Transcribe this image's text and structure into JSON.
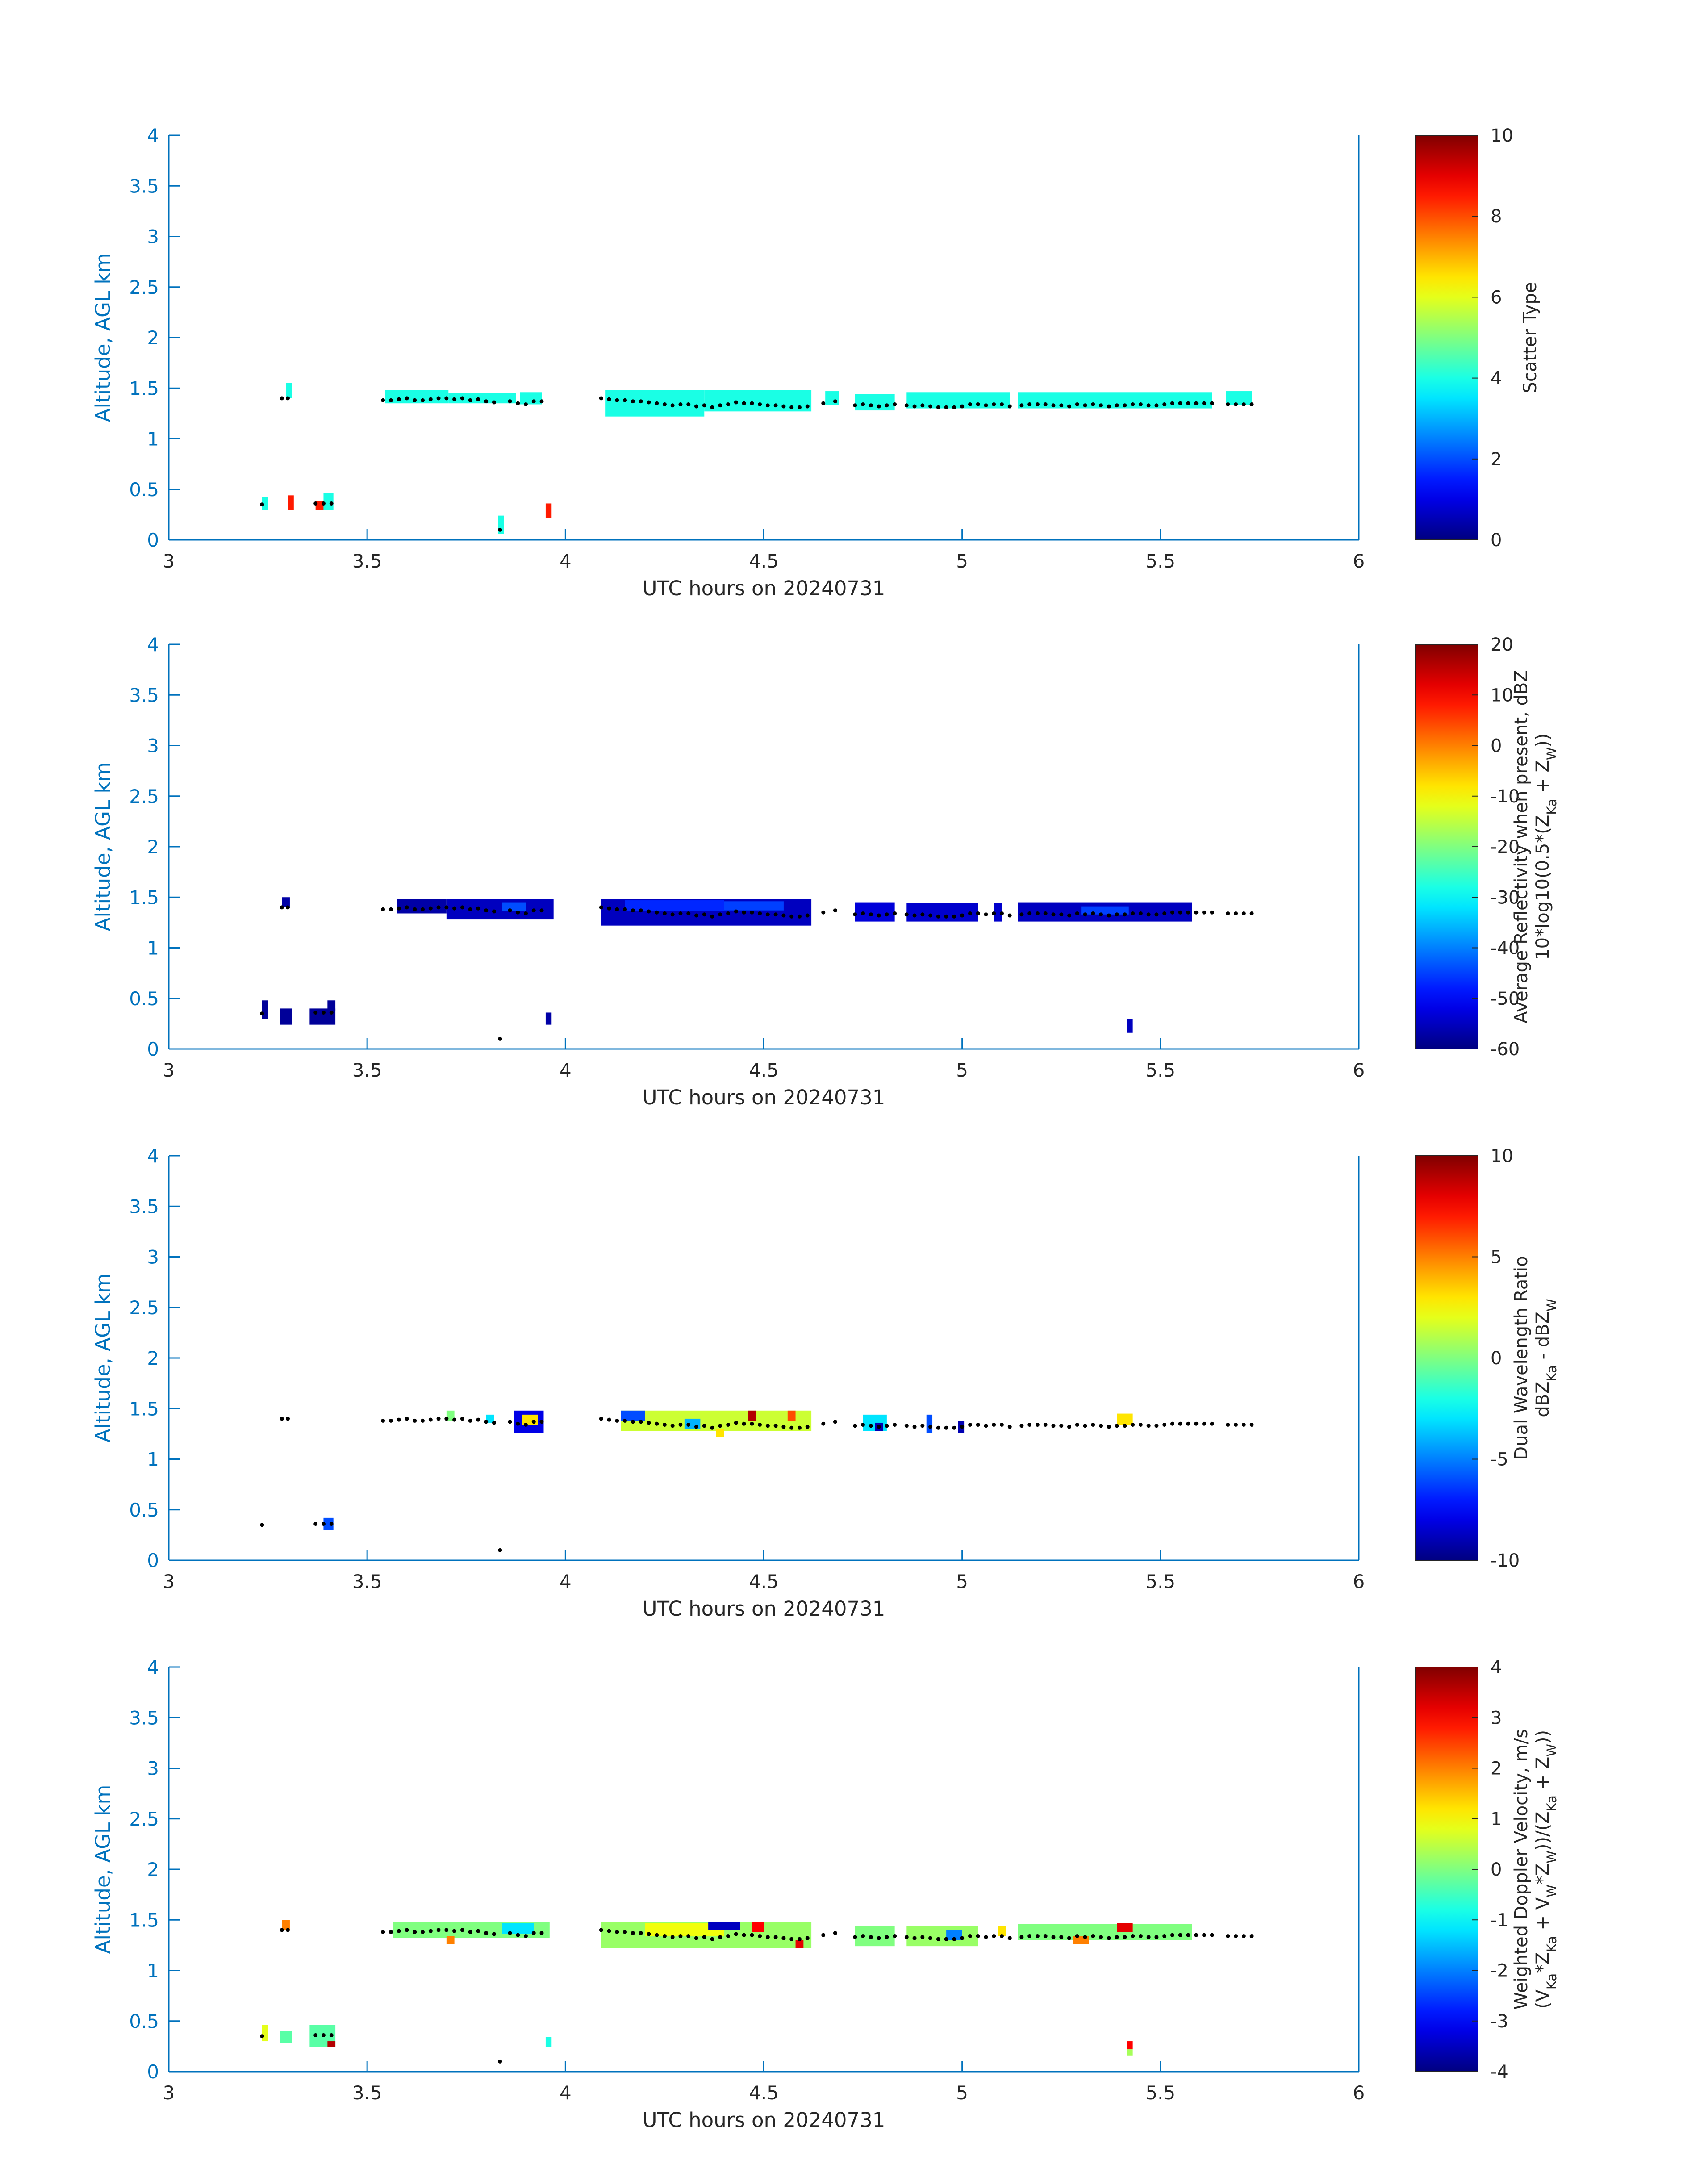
{
  "figure": {
    "xlabel": "UTC hours on 20240731",
    "ylabel": "Altitude, AGL km",
    "axis_color": "#0072BD",
    "text_color": "#262626",
    "marker_color": "#000000"
  },
  "chart_data": [
    {
      "type": "heatmap",
      "xlabel": "UTC hours on 20240731",
      "ylabel": "Altitude, AGL km",
      "xlim": [
        3,
        6
      ],
      "ylim": [
        0,
        4
      ],
      "xticks": [
        3,
        3.5,
        4,
        4.5,
        5,
        5.5,
        6
      ],
      "yticks": [
        0,
        0.5,
        1,
        1.5,
        2,
        2.5,
        3,
        3.5,
        4
      ],
      "colorbar": {
        "label_lines": [
          "Scatter Type"
        ],
        "clim": [
          0,
          10
        ],
        "ticks": [
          0,
          2,
          4,
          6,
          8,
          10
        ],
        "colormap": "jet"
      },
      "grid": false,
      "segments": [
        {
          "x0": 3.295,
          "x1": 3.31,
          "y0": 1.4,
          "y1": 1.55,
          "v": 4
        },
        {
          "x0": 3.545,
          "x1": 3.705,
          "y0": 1.35,
          "y1": 1.48,
          "v": 4
        },
        {
          "x0": 3.705,
          "x1": 3.875,
          "y0": 1.35,
          "y1": 1.45,
          "v": 4
        },
        {
          "x0": 3.885,
          "x1": 3.94,
          "y0": 1.34,
          "y1": 1.46,
          "v": 4
        },
        {
          "x0": 4.1,
          "x1": 4.35,
          "y0": 1.22,
          "y1": 1.48,
          "v": 4
        },
        {
          "x0": 4.35,
          "x1": 4.62,
          "y0": 1.27,
          "y1": 1.48,
          "v": 4
        },
        {
          "x0": 4.655,
          "x1": 4.69,
          "y0": 1.33,
          "y1": 1.47,
          "v": 4
        },
        {
          "x0": 4.73,
          "x1": 4.83,
          "y0": 1.28,
          "y1": 1.44,
          "v": 4
        },
        {
          "x0": 4.86,
          "x1": 5.12,
          "y0": 1.3,
          "y1": 1.46,
          "v": 4
        },
        {
          "x0": 5.14,
          "x1": 5.63,
          "y0": 1.3,
          "y1": 1.46,
          "v": 4
        },
        {
          "x0": 5.665,
          "x1": 5.73,
          "y0": 1.33,
          "y1": 1.47,
          "v": 4
        },
        {
          "x0": 3.235,
          "x1": 3.25,
          "y0": 0.3,
          "y1": 0.42,
          "v": 4
        },
        {
          "x0": 3.3,
          "x1": 3.315,
          "y0": 0.3,
          "y1": 0.44,
          "v": 8.5
        },
        {
          "x0": 3.37,
          "x1": 3.39,
          "y0": 0.3,
          "y1": 0.38,
          "v": 8.5
        },
        {
          "x0": 3.39,
          "x1": 3.415,
          "y0": 0.3,
          "y1": 0.46,
          "v": 4
        },
        {
          "x0": 3.83,
          "x1": 3.845,
          "y0": 0.06,
          "y1": 0.24,
          "v": 4
        },
        {
          "x0": 3.95,
          "x1": 3.965,
          "y0": 0.22,
          "y1": 0.36,
          "v": 8.5
        }
      ]
    },
    {
      "type": "heatmap",
      "xlabel": "UTC hours on 20240731",
      "ylabel": "Altitude, AGL km",
      "xlim": [
        3,
        6
      ],
      "ylim": [
        0,
        4
      ],
      "xticks": [
        3,
        3.5,
        4,
        4.5,
        5,
        5.5,
        6
      ],
      "yticks": [
        0,
        0.5,
        1,
        1.5,
        2,
        2.5,
        3,
        3.5,
        4
      ],
      "colorbar": {
        "label_lines": [
          "Average Reflectivity when present, dBZ",
          "10*log10(0.5*(Z_Ka + Z_W))"
        ],
        "clim": [
          -60,
          20
        ],
        "ticks": [
          -60,
          -50,
          -40,
          -30,
          -20,
          -10,
          0,
          10,
          20
        ],
        "colormap": "jet"
      },
      "grid": false,
      "segments": [
        {
          "x0": 3.575,
          "x1": 3.7,
          "y0": 1.34,
          "y1": 1.48,
          "v": -57
        },
        {
          "x0": 3.7,
          "x1": 3.97,
          "y0": 1.28,
          "y1": 1.48,
          "v": -55
        },
        {
          "x0": 3.84,
          "x1": 3.9,
          "y0": 1.36,
          "y1": 1.45,
          "v": -44
        },
        {
          "x0": 4.09,
          "x1": 4.62,
          "y0": 1.22,
          "y1": 1.48,
          "v": -55
        },
        {
          "x0": 4.15,
          "x1": 4.4,
          "y0": 1.36,
          "y1": 1.47,
          "v": -47
        },
        {
          "x0": 4.4,
          "x1": 4.55,
          "y0": 1.37,
          "y1": 1.46,
          "v": -45
        },
        {
          "x0": 4.73,
          "x1": 4.83,
          "y0": 1.26,
          "y1": 1.45,
          "v": -53
        },
        {
          "x0": 4.86,
          "x1": 5.04,
          "y0": 1.26,
          "y1": 1.44,
          "v": -54
        },
        {
          "x0": 5.08,
          "x1": 5.1,
          "y0": 1.26,
          "y1": 1.44,
          "v": -54
        },
        {
          "x0": 5.14,
          "x1": 5.58,
          "y0": 1.26,
          "y1": 1.45,
          "v": -55
        },
        {
          "x0": 5.3,
          "x1": 5.42,
          "y0": 1.33,
          "y1": 1.41,
          "v": -45
        },
        {
          "x0": 3.285,
          "x1": 3.305,
          "y0": 1.4,
          "y1": 1.5,
          "v": -57
        },
        {
          "x0": 3.235,
          "x1": 3.25,
          "y0": 0.3,
          "y1": 0.48,
          "v": -58
        },
        {
          "x0": 3.28,
          "x1": 3.31,
          "y0": 0.24,
          "y1": 0.4,
          "v": -58
        },
        {
          "x0": 3.355,
          "x1": 3.42,
          "y0": 0.24,
          "y1": 0.4,
          "v": -58
        },
        {
          "x0": 3.4,
          "x1": 3.42,
          "y0": 0.38,
          "y1": 0.48,
          "v": -58
        },
        {
          "x0": 3.95,
          "x1": 3.965,
          "y0": 0.24,
          "y1": 0.36,
          "v": -57
        },
        {
          "x0": 5.415,
          "x1": 5.43,
          "y0": 0.16,
          "y1": 0.3,
          "v": -55
        }
      ]
    },
    {
      "type": "heatmap",
      "xlabel": "UTC hours on 20240731",
      "ylabel": "Altitude, AGL km",
      "xlim": [
        3,
        6
      ],
      "ylim": [
        0,
        4
      ],
      "xticks": [
        3,
        3.5,
        4,
        4.5,
        5,
        5.5,
        6
      ],
      "yticks": [
        0,
        0.5,
        1,
        1.5,
        2,
        2.5,
        3,
        3.5,
        4
      ],
      "colorbar": {
        "label_lines": [
          "Dual Wavelength Ratio",
          "dBZ_Ka - dBZ_W"
        ],
        "clim": [
          -10,
          10
        ],
        "ticks": [
          -10,
          -5,
          0,
          5,
          10
        ],
        "colormap": "jet"
      },
      "grid": false,
      "segments": [
        {
          "x0": 3.7,
          "x1": 3.72,
          "y0": 1.38,
          "y1": 1.48,
          "v": 0
        },
        {
          "x0": 3.8,
          "x1": 3.82,
          "y0": 1.36,
          "y1": 1.44,
          "v": -3
        },
        {
          "x0": 3.87,
          "x1": 3.945,
          "y0": 1.26,
          "y1": 1.48,
          "v": -8
        },
        {
          "x0": 3.89,
          "x1": 3.93,
          "y0": 1.34,
          "y1": 1.44,
          "v": 3
        },
        {
          "x0": 4.14,
          "x1": 4.62,
          "y0": 1.28,
          "y1": 1.48,
          "v": 1.5
        },
        {
          "x0": 4.14,
          "x1": 4.2,
          "y0": 1.38,
          "y1": 1.48,
          "v": -6
        },
        {
          "x0": 4.3,
          "x1": 4.34,
          "y0": 1.3,
          "y1": 1.4,
          "v": -4
        },
        {
          "x0": 4.46,
          "x1": 4.48,
          "y0": 1.38,
          "y1": 1.48,
          "v": 9
        },
        {
          "x0": 4.56,
          "x1": 4.58,
          "y0": 1.38,
          "y1": 1.48,
          "v": 6
        },
        {
          "x0": 4.38,
          "x1": 4.4,
          "y0": 1.22,
          "y1": 1.3,
          "v": 3
        },
        {
          "x0": 4.75,
          "x1": 4.81,
          "y0": 1.28,
          "y1": 1.44,
          "v": -3
        },
        {
          "x0": 4.78,
          "x1": 4.8,
          "y0": 1.28,
          "y1": 1.36,
          "v": -9
        },
        {
          "x0": 4.91,
          "x1": 4.925,
          "y0": 1.26,
          "y1": 1.44,
          "v": -6
        },
        {
          "x0": 4.99,
          "x1": 5.005,
          "y0": 1.26,
          "y1": 1.38,
          "v": -9
        },
        {
          "x0": 5.39,
          "x1": 5.43,
          "y0": 1.34,
          "y1": 1.45,
          "v": 3
        },
        {
          "x0": 3.39,
          "x1": 3.415,
          "y0": 0.3,
          "y1": 0.42,
          "v": -6
        }
      ]
    },
    {
      "type": "heatmap",
      "xlabel": "UTC hours on 20240731",
      "ylabel": "Altitude, AGL km",
      "xlim": [
        3,
        6
      ],
      "ylim": [
        0,
        4
      ],
      "xticks": [
        3,
        3.5,
        4,
        4.5,
        5,
        5.5,
        6
      ],
      "yticks": [
        0,
        0.5,
        1,
        1.5,
        2,
        2.5,
        3,
        3.5,
        4
      ],
      "colorbar": {
        "label_lines": [
          "Weighted Doppler Velocity, m/s",
          "(V_Ka*Z_Ka + V_W*Z_W))/(Z_Ka + Z_W))"
        ],
        "clim": [
          -4,
          4
        ],
        "ticks": [
          -4,
          -3,
          -2,
          -1,
          0,
          1,
          2,
          3,
          4
        ],
        "colormap": "jet"
      },
      "grid": false,
      "segments": [
        {
          "x0": 3.565,
          "x1": 3.96,
          "y0": 1.32,
          "y1": 1.48,
          "v": 0
        },
        {
          "x0": 3.84,
          "x1": 3.92,
          "y0": 1.36,
          "y1": 1.47,
          "v": -1.2
        },
        {
          "x0": 3.7,
          "x1": 3.72,
          "y0": 1.26,
          "y1": 1.34,
          "v": 2
        },
        {
          "x0": 4.09,
          "x1": 4.62,
          "y0": 1.22,
          "y1": 1.48,
          "v": 0.2
        },
        {
          "x0": 4.2,
          "x1": 4.4,
          "y0": 1.34,
          "y1": 1.47,
          "v": 0.9
        },
        {
          "x0": 4.36,
          "x1": 4.44,
          "y0": 1.4,
          "y1": 1.48,
          "v": -3.5
        },
        {
          "x0": 4.47,
          "x1": 4.5,
          "y0": 1.38,
          "y1": 1.48,
          "v": 3
        },
        {
          "x0": 4.58,
          "x1": 4.6,
          "y0": 1.22,
          "y1": 1.3,
          "v": 3.2
        },
        {
          "x0": 4.73,
          "x1": 4.83,
          "y0": 1.24,
          "y1": 1.44,
          "v": 0
        },
        {
          "x0": 4.86,
          "x1": 5.04,
          "y0": 1.24,
          "y1": 1.44,
          "v": 0.2
        },
        {
          "x0": 4.96,
          "x1": 5.0,
          "y0": 1.3,
          "y1": 1.4,
          "v": -2
        },
        {
          "x0": 5.09,
          "x1": 5.11,
          "y0": 1.34,
          "y1": 1.44,
          "v": 1.2
        },
        {
          "x0": 5.14,
          "x1": 5.58,
          "y0": 1.3,
          "y1": 1.46,
          "v": 0
        },
        {
          "x0": 5.39,
          "x1": 5.43,
          "y0": 1.38,
          "y1": 1.47,
          "v": 3.2
        },
        {
          "x0": 5.28,
          "x1": 5.32,
          "y0": 1.26,
          "y1": 1.34,
          "v": 2
        },
        {
          "x0": 3.285,
          "x1": 3.305,
          "y0": 1.4,
          "y1": 1.5,
          "v": 2
        },
        {
          "x0": 3.235,
          "x1": 3.25,
          "y0": 0.3,
          "y1": 0.46,
          "v": 0.8
        },
        {
          "x0": 3.28,
          "x1": 3.31,
          "y0": 0.28,
          "y1": 0.4,
          "v": -0.3
        },
        {
          "x0": 3.355,
          "x1": 3.42,
          "y0": 0.24,
          "y1": 0.46,
          "v": -0.3
        },
        {
          "x0": 3.4,
          "x1": 3.42,
          "y0": 0.24,
          "y1": 0.3,
          "v": 3.6
        },
        {
          "x0": 3.95,
          "x1": 3.965,
          "y0": 0.24,
          "y1": 0.34,
          "v": -0.8
        },
        {
          "x0": 5.415,
          "x1": 5.43,
          "y0": 0.22,
          "y1": 0.3,
          "v": 3
        },
        {
          "x0": 5.415,
          "x1": 5.43,
          "y0": 0.16,
          "y1": 0.22,
          "v": 0.3
        }
      ]
    }
  ],
  "cloud_base_markers": {
    "x": [
      3.235,
      3.285,
      3.3,
      3.37,
      3.39,
      3.41,
      3.54,
      3.56,
      3.58,
      3.6,
      3.62,
      3.64,
      3.66,
      3.68,
      3.7,
      3.72,
      3.74,
      3.76,
      3.78,
      3.8,
      3.82,
      3.835,
      3.86,
      3.88,
      3.9,
      3.92,
      3.94,
      4.09,
      4.11,
      4.13,
      4.15,
      4.17,
      4.19,
      4.21,
      4.23,
      4.25,
      4.27,
      4.29,
      4.31,
      4.33,
      4.35,
      4.37,
      4.39,
      4.41,
      4.43,
      4.45,
      4.47,
      4.49,
      4.51,
      4.53,
      4.55,
      4.57,
      4.59,
      4.61,
      4.65,
      4.68,
      4.73,
      4.75,
      4.77,
      4.79,
      4.81,
      4.83,
      4.86,
      4.88,
      4.9,
      4.92,
      4.94,
      4.96,
      4.98,
      5.0,
      5.02,
      5.04,
      5.06,
      5.08,
      5.1,
      5.12,
      5.15,
      5.17,
      5.19,
      5.21,
      5.23,
      5.25,
      5.27,
      5.29,
      5.31,
      5.33,
      5.35,
      5.37,
      5.39,
      5.41,
      5.43,
      5.45,
      5.47,
      5.49,
      5.51,
      5.53,
      5.55,
      5.57,
      5.59,
      5.61,
      5.63,
      5.67,
      5.69,
      5.71,
      5.73
    ],
    "y": [
      0.35,
      1.4,
      1.4,
      0.36,
      0.36,
      0.36,
      1.38,
      1.38,
      1.39,
      1.4,
      1.38,
      1.38,
      1.39,
      1.4,
      1.4,
      1.39,
      1.4,
      1.38,
      1.39,
      1.37,
      1.36,
      0.1,
      1.37,
      1.35,
      1.34,
      1.37,
      1.37,
      1.4,
      1.39,
      1.38,
      1.38,
      1.37,
      1.37,
      1.36,
      1.35,
      1.34,
      1.33,
      1.34,
      1.34,
      1.32,
      1.33,
      1.31,
      1.33,
      1.34,
      1.36,
      1.35,
      1.35,
      1.34,
      1.33,
      1.33,
      1.32,
      1.31,
      1.31,
      1.32,
      1.35,
      1.37,
      1.33,
      1.34,
      1.33,
      1.32,
      1.33,
      1.34,
      1.33,
      1.32,
      1.33,
      1.32,
      1.31,
      1.31,
      1.31,
      1.32,
      1.34,
      1.34,
      1.33,
      1.34,
      1.34,
      1.32,
      1.33,
      1.34,
      1.34,
      1.34,
      1.33,
      1.33,
      1.32,
      1.34,
      1.33,
      1.34,
      1.33,
      1.32,
      1.33,
      1.33,
      1.34,
      1.34,
      1.33,
      1.33,
      1.34,
      1.35,
      1.35,
      1.35,
      1.35,
      1.35,
      1.35,
      1.34,
      1.34,
      1.34,
      1.34
    ]
  }
}
